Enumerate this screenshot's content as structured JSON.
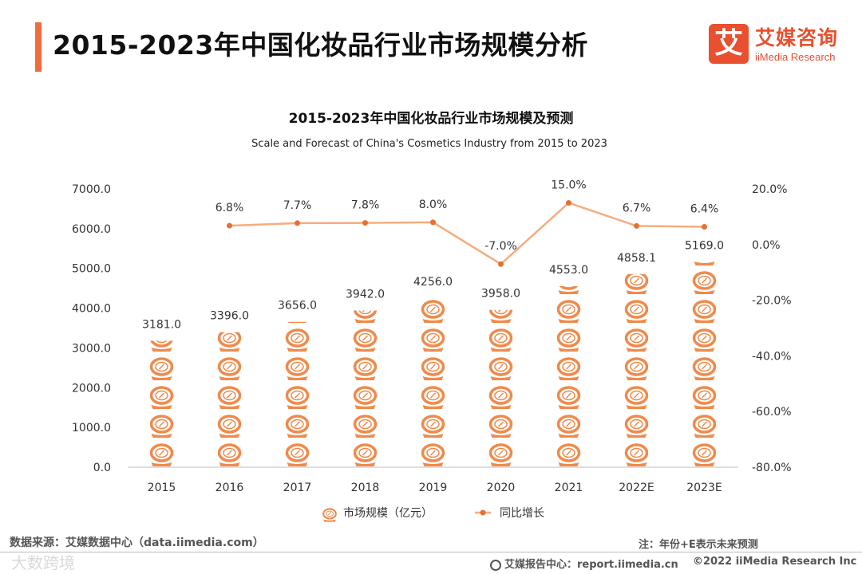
{
  "header": {
    "title": "2015-2023年中国化妆品行业市场规模分析",
    "brand_cn": "艾媒咨询",
    "brand_en": "iiMedia Research",
    "brand_mark": "艾"
  },
  "colors": {
    "accent": "#f26b3a",
    "bar": "#f08a4b",
    "line": "#f5ad7f",
    "brand": "#e8502f"
  },
  "chart_data": {
    "type": "bar",
    "title": "2015-2023年中国化妆品行业市场规模及预测",
    "subtitle": "Scale and Forecast of China's Cosmetics Industry from 2015 to 2023",
    "categories": [
      "2015",
      "2016",
      "2017",
      "2018",
      "2019",
      "2020",
      "2021",
      "2022E",
      "2023E"
    ],
    "series": [
      {
        "name": "市场规模（亿元）",
        "type": "bar",
        "axis": "left",
        "values": [
          3181.0,
          3396.0,
          3656.0,
          3942.0,
          4256.0,
          3958.0,
          4553.0,
          4858.1,
          5169.0
        ],
        "labels": [
          "3181.0",
          "3396.0",
          "3656.0",
          "3942.0",
          "4256.0",
          "3958.0",
          "4553.0",
          "4858.1",
          "5169.0"
        ]
      },
      {
        "name": "同比增长",
        "type": "line",
        "axis": "right",
        "values": [
          null,
          6.8,
          7.7,
          7.8,
          8.0,
          -7.0,
          15.0,
          6.7,
          6.4
        ],
        "labels": [
          "",
          "6.8%",
          "7.7%",
          "7.8%",
          "8.0%",
          "-7.0%",
          "15.0%",
          "6.7%",
          "6.4%"
        ]
      }
    ],
    "y_left": {
      "ylim": [
        0,
        7000
      ],
      "ticks": [
        "0.0",
        "1000.0",
        "2000.0",
        "3000.0",
        "4000.0",
        "5000.0",
        "6000.0",
        "7000.0"
      ]
    },
    "y_right": {
      "ylim": [
        -80,
        20
      ],
      "ticks": [
        "-80.0%",
        "-60.0%",
        "-40.0%",
        "-20.0%",
        "0.0%",
        "20.0%"
      ]
    },
    "legend": {
      "placement": "bottom",
      "items": [
        "市场规模（亿元）",
        "同比增长"
      ]
    },
    "grid": false
  },
  "footer": {
    "source": "数据来源：艾媒数据中心（data.iimedia.com）",
    "note": "注：年份+E表示未来预测",
    "report": "艾媒报告中心：report.iimedia.cn",
    "copyright": "©2022  iiMedia Research  Inc",
    "watermark": "大数跨境"
  }
}
